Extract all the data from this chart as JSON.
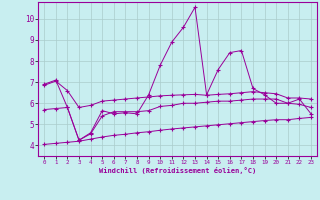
{
  "xlabel": "Windchill (Refroidissement éolien,°C)",
  "bg_color": "#c8eef0",
  "line_color": "#990099",
  "grid_color": "#aacccc",
  "xlim": [
    -0.5,
    23.5
  ],
  "ylim": [
    3.5,
    10.8
  ],
  "yticks": [
    4,
    5,
    6,
    7,
    8,
    9,
    10
  ],
  "xticks": [
    0,
    1,
    2,
    3,
    4,
    5,
    6,
    7,
    8,
    9,
    10,
    11,
    12,
    13,
    14,
    15,
    16,
    17,
    18,
    19,
    20,
    21,
    22,
    23
  ],
  "line1_x": [
    0,
    1,
    2,
    3,
    4,
    5,
    6,
    7,
    8,
    9,
    10,
    11,
    12,
    13,
    14,
    15,
    16,
    17,
    18,
    19,
    20,
    21,
    22,
    23
  ],
  "line1_y": [
    6.9,
    7.1,
    5.8,
    4.25,
    4.6,
    5.65,
    5.5,
    5.55,
    5.5,
    6.4,
    7.8,
    8.9,
    9.6,
    10.55,
    6.4,
    7.6,
    8.4,
    8.5,
    6.7,
    6.4,
    6.0,
    6.0,
    6.2,
    5.5
  ],
  "line2_x": [
    0,
    1,
    2,
    3,
    4,
    5,
    6,
    7,
    8,
    9,
    10,
    11,
    12,
    13,
    14,
    15,
    16,
    17,
    18,
    19,
    20,
    21,
    22,
    23
  ],
  "line2_y": [
    6.85,
    7.05,
    6.6,
    5.8,
    5.9,
    6.1,
    6.15,
    6.2,
    6.25,
    6.3,
    6.35,
    6.38,
    6.4,
    6.42,
    6.38,
    6.42,
    6.45,
    6.5,
    6.55,
    6.5,
    6.45,
    6.25,
    6.25,
    6.2
  ],
  "line3_x": [
    0,
    1,
    2,
    3,
    4,
    5,
    6,
    7,
    8,
    9,
    10,
    11,
    12,
    13,
    14,
    15,
    16,
    17,
    18,
    19,
    20,
    21,
    22,
    23
  ],
  "line3_y": [
    5.7,
    5.75,
    5.8,
    4.25,
    4.55,
    5.4,
    5.6,
    5.6,
    5.6,
    5.65,
    5.85,
    5.9,
    6.0,
    6.0,
    6.05,
    6.1,
    6.1,
    6.15,
    6.2,
    6.2,
    6.2,
    6.0,
    5.95,
    5.8
  ],
  "line4_x": [
    0,
    1,
    2,
    3,
    4,
    5,
    6,
    7,
    8,
    9,
    10,
    11,
    12,
    13,
    14,
    15,
    16,
    17,
    18,
    19,
    20,
    21,
    22,
    23
  ],
  "line4_y": [
    4.05,
    4.1,
    4.15,
    4.2,
    4.3,
    4.4,
    4.48,
    4.53,
    4.6,
    4.65,
    4.72,
    4.78,
    4.83,
    4.88,
    4.93,
    4.98,
    5.03,
    5.08,
    5.13,
    5.18,
    5.22,
    5.22,
    5.28,
    5.33
  ],
  "marker": "+",
  "markersize": 3.5,
  "lw": 0.7
}
